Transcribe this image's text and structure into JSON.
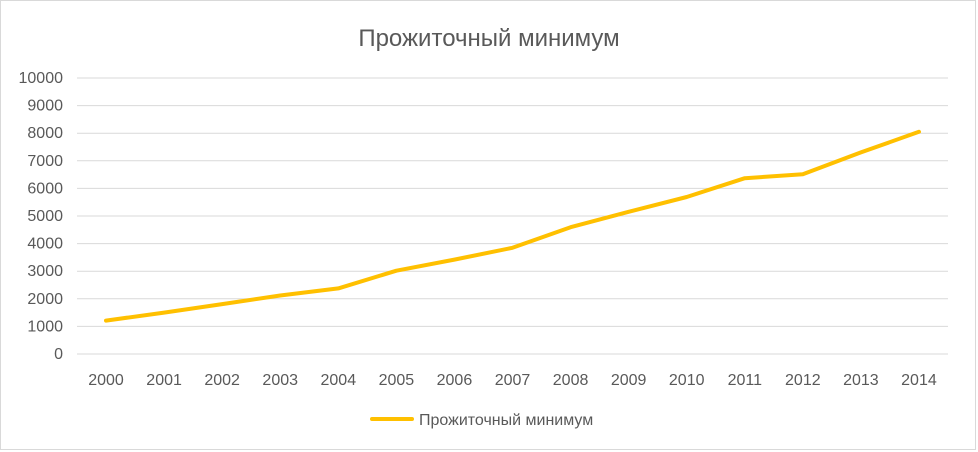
{
  "chart_data": {
    "type": "line",
    "title": "Прожиточный минимум",
    "xlabel": "",
    "ylabel": "",
    "x": [
      "2000",
      "2001",
      "2002",
      "2003",
      "2004",
      "2005",
      "2006",
      "2007",
      "2008",
      "2009",
      "2010",
      "2011",
      "2012",
      "2013",
      "2014"
    ],
    "series": [
      {
        "name": "Прожиточный минимум",
        "color": "#ffc000",
        "values": [
          1210,
          1500,
          1808,
          2121,
          2376,
          3018,
          3422,
          3847,
          4593,
          5153,
          5688,
          6369,
          6510,
          7306,
          8050
        ]
      }
    ],
    "ylim": [
      0,
      10000
    ],
    "yticks": [
      "0",
      "1000",
      "2000",
      "3000",
      "4000",
      "5000",
      "6000",
      "7000",
      "8000",
      "9000",
      "10000"
    ],
    "grid": true,
    "legend": "bottom"
  }
}
